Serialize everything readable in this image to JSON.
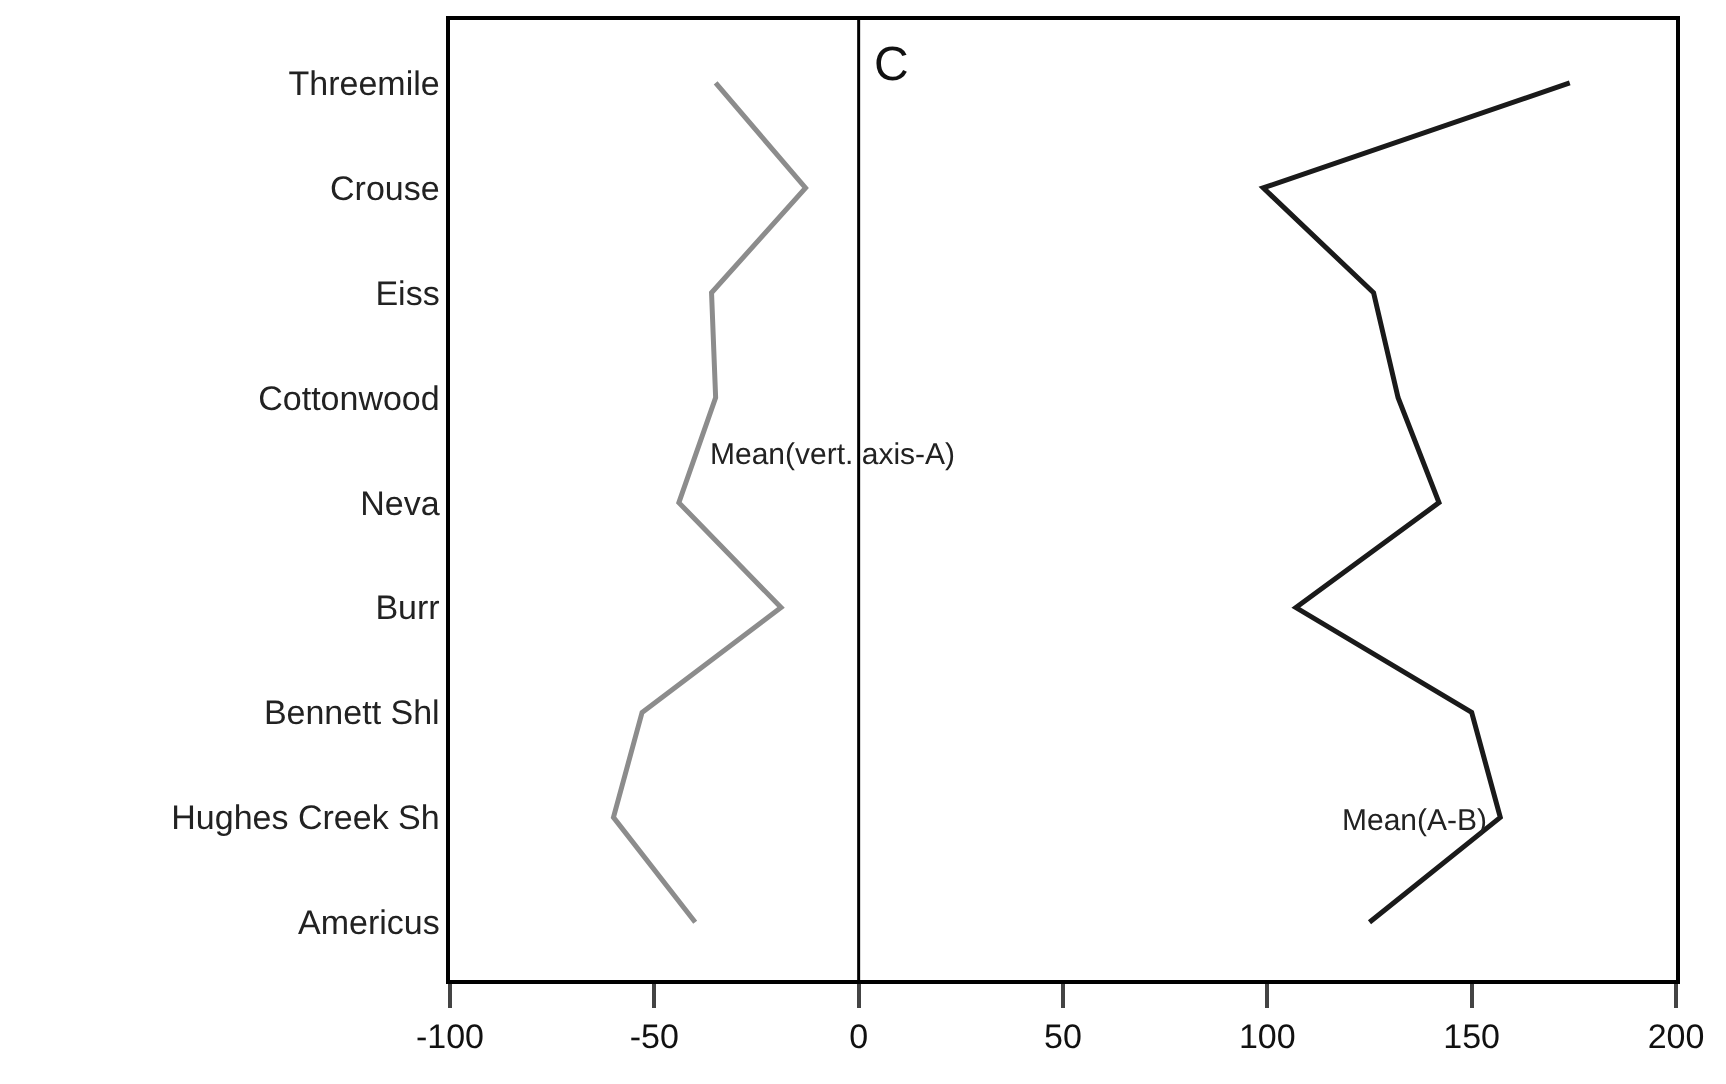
{
  "chart_data": {
    "type": "line",
    "orientation": "horizontal",
    "categories": [
      "Threemile",
      "Crouse",
      "Eiss",
      "Cottonwood",
      "Neva",
      "Burr",
      "Bennett Shl",
      "Hughes Creek Sh",
      "Americus"
    ],
    "series": [
      {
        "name": "Mean(vert. axis-A)",
        "color": "#8c8c8c",
        "values": [
          -35,
          -13,
          -36,
          -35,
          -44,
          -19,
          -53,
          -60,
          -40
        ]
      },
      {
        "name": "Mean(A-B)",
        "color": "#1a1a1a",
        "values": [
          174,
          99,
          126,
          132,
          142,
          107,
          150,
          157,
          125
        ]
      }
    ],
    "xlim": [
      -100,
      200
    ],
    "xticks": [
      -100,
      -50,
      0,
      50,
      100,
      150,
      200
    ],
    "ref_lines": [
      {
        "axis": "x",
        "value": 0,
        "color": "#000000"
      }
    ],
    "annotations": [
      "C"
    ],
    "grid": false,
    "legend": false,
    "marker": "none",
    "line_style": "solid"
  }
}
